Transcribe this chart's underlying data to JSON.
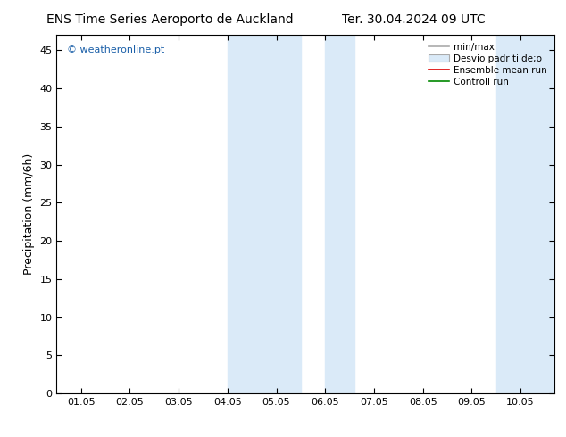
{
  "title_left": "ENS Time Series Aeroporto de Auckland",
  "title_right": "Ter. 30.04.2024 09 UTC",
  "ylabel": "Precipitation (mm/6h)",
  "watermark": "© weatheronline.pt",
  "yticks": [
    0,
    5,
    10,
    15,
    20,
    25,
    30,
    35,
    40,
    45
  ],
  "ylim": [
    0,
    47
  ],
  "xtick_labels": [
    "01.05",
    "02.05",
    "03.05",
    "04.05",
    "05.05",
    "06.05",
    "07.05",
    "08.05",
    "09.05",
    "10.05"
  ],
  "xtick_positions": [
    0,
    1,
    2,
    3,
    4,
    5,
    6,
    7,
    8,
    9
  ],
  "xlim": [
    -0.5,
    9.7
  ],
  "shaded_bands": [
    {
      "x_start": 3.0,
      "x_end": 4.5
    },
    {
      "x_start": 5.0,
      "x_end": 5.6
    },
    {
      "x_start": 8.5,
      "x_end": 9.7
    }
  ],
  "shade_color": "#daeaf8",
  "background_color": "#ffffff",
  "plot_bg_color": "#ffffff",
  "title_fontsize": 10,
  "tick_fontsize": 8,
  "ylabel_fontsize": 9,
  "legend_label_minmax": "min/max",
  "legend_label_desvio": "Desvio padr tilde;o",
  "legend_label_ensemble": "Ensemble mean run",
  "legend_label_control": "Controll run",
  "legend_color_minmax": "#aaaaaa",
  "legend_color_desvio_face": "#daeaf8",
  "legend_color_desvio_edge": "#aaaaaa",
  "legend_color_ensemble": "#dd0000",
  "legend_color_control": "#008800"
}
